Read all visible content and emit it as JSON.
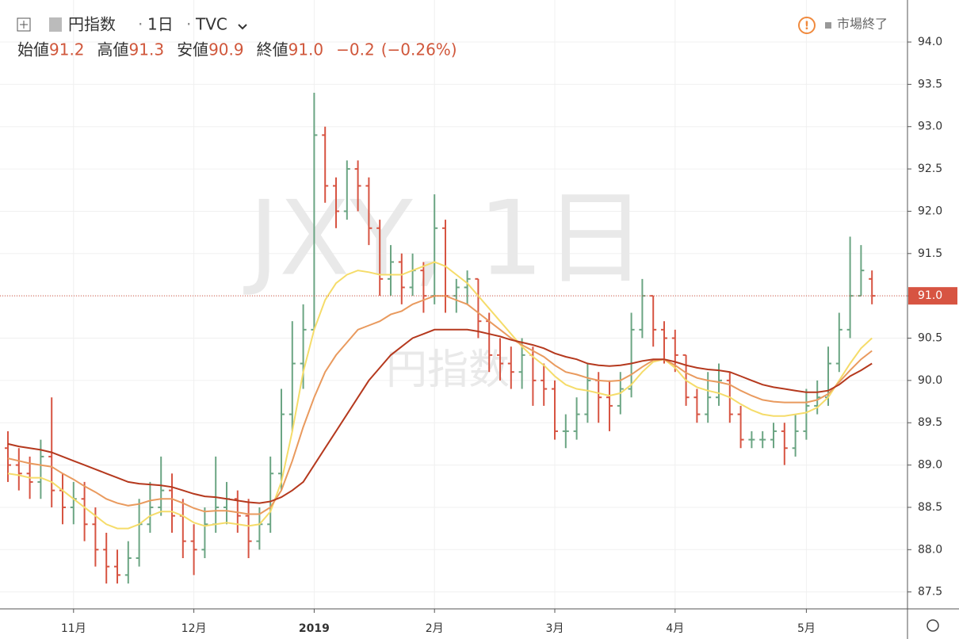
{
  "chart_data": {
    "type": "ohlc",
    "symbol": "円指数",
    "interval": "1日",
    "exchange": "TVC",
    "ohlc_labels": [
      "始値",
      "高値",
      "安値",
      "終値"
    ],
    "ohlc_values": [
      "91.2",
      "91.3",
      "90.9",
      "91.0"
    ],
    "change": "−0.2",
    "change_pct": "(−0.26%)",
    "status": "市場終了",
    "watermark": "JXY, 1日",
    "watermark_sub": "円指数",
    "last_price": {
      "value": 91.0,
      "label": "91.0"
    },
    "categories": [
      null,
      null,
      null,
      null,
      null,
      null,
      "11月",
      null,
      null,
      null,
      null,
      null,
      null,
      null,
      null,
      null,
      null,
      "12月",
      null,
      null,
      null,
      null,
      null,
      null,
      null,
      null,
      null,
      null,
      "2019",
      null,
      null,
      null,
      null,
      null,
      null,
      null,
      null,
      null,
      null,
      "2月",
      null,
      null,
      null,
      null,
      null,
      null,
      null,
      null,
      null,
      null,
      "3月",
      null,
      null,
      null,
      null,
      null,
      null,
      null,
      null,
      null,
      null,
      "4月",
      null,
      null,
      null,
      null,
      null,
      null,
      null,
      null,
      null,
      null,
      null,
      "5月",
      null,
      null,
      null,
      null,
      null,
      null
    ],
    "open": [
      89.2,
      89.0,
      88.9,
      88.8,
      89.1,
      88.7,
      88.5,
      88.6,
      88.3,
      88.0,
      87.8,
      87.7,
      87.9,
      88.3,
      88.5,
      88.7,
      88.4,
      88.1,
      88.0,
      88.3,
      88.5,
      88.6,
      88.4,
      88.1,
      88.3,
      88.9,
      89.6,
      90.2,
      90.6,
      92.9,
      92.3,
      92.0,
      92.5,
      92.3,
      91.8,
      91.2,
      91.4,
      91.1,
      91.3,
      91.0,
      91.8,
      91.0,
      91.1,
      91.2,
      90.7,
      90.3,
      90.2,
      90.1,
      90.3,
      90.0,
      89.9,
      89.4,
      89.4,
      89.6,
      90.0,
      89.8,
      89.7,
      89.9,
      90.6,
      91.0,
      90.6,
      90.5,
      90.3,
      89.8,
      89.6,
      89.8,
      90.0,
      89.6,
      89.3,
      89.3,
      89.3,
      89.4,
      89.2,
      89.4,
      89.7,
      89.8,
      90.2,
      90.6,
      91.0,
      91.2
    ],
    "high": [
      89.4,
      89.2,
      89.1,
      89.3,
      89.8,
      88.9,
      88.8,
      88.8,
      88.5,
      88.2,
      88.0,
      88.1,
      88.6,
      88.8,
      89.1,
      88.9,
      88.6,
      88.3,
      88.5,
      89.1,
      88.8,
      88.7,
      88.6,
      88.5,
      89.1,
      89.9,
      90.7,
      90.9,
      93.4,
      93.0,
      92.4,
      92.6,
      92.6,
      92.4,
      91.9,
      91.6,
      91.5,
      91.5,
      91.4,
      92.2,
      91.9,
      91.2,
      91.3,
      91.2,
      90.8,
      90.5,
      90.4,
      90.5,
      90.4,
      90.2,
      90.0,
      89.6,
      89.8,
      90.2,
      90.1,
      90.0,
      90.1,
      90.8,
      91.2,
      91.0,
      90.7,
      90.6,
      90.3,
      89.9,
      90.1,
      90.2,
      90.1,
      89.7,
      89.4,
      89.4,
      89.5,
      89.5,
      89.6,
      89.9,
      90.0,
      90.4,
      90.8,
      91.7,
      91.6,
      91.3
    ],
    "low": [
      88.8,
      88.7,
      88.6,
      88.6,
      88.5,
      88.3,
      88.3,
      88.1,
      87.8,
      87.6,
      87.6,
      87.6,
      87.8,
      88.2,
      88.4,
      88.2,
      87.9,
      87.7,
      87.9,
      88.2,
      88.3,
      88.2,
      87.9,
      88.0,
      88.2,
      88.7,
      89.4,
      89.9,
      90.6,
      92.1,
      91.8,
      91.9,
      92.0,
      91.6,
      91.0,
      91.0,
      90.9,
      91.0,
      90.8,
      90.9,
      90.8,
      90.8,
      90.9,
      90.5,
      90.1,
      90.0,
      89.9,
      89.9,
      89.7,
      89.7,
      89.3,
      89.2,
      89.3,
      89.5,
      89.5,
      89.4,
      89.6,
      89.8,
      90.5,
      90.4,
      90.2,
      90.1,
      89.7,
      89.5,
      89.5,
      89.7,
      89.5,
      89.2,
      89.2,
      89.2,
      89.2,
      89.0,
      89.1,
      89.3,
      89.6,
      89.7,
      90.1,
      90.5,
      91.0,
      90.9
    ],
    "close": [
      89.0,
      88.9,
      88.8,
      89.1,
      88.7,
      88.5,
      88.6,
      88.3,
      88.0,
      87.8,
      87.7,
      87.9,
      88.3,
      88.5,
      88.7,
      88.4,
      88.1,
      88.0,
      88.3,
      88.5,
      88.6,
      88.4,
      88.1,
      88.3,
      88.9,
      89.6,
      90.2,
      90.6,
      92.9,
      92.3,
      92.0,
      92.5,
      92.3,
      91.8,
      91.2,
      91.4,
      91.1,
      91.3,
      91.0,
      91.8,
      91.0,
      91.1,
      91.2,
      90.7,
      90.3,
      90.2,
      90.1,
      90.3,
      90.0,
      89.9,
      89.4,
      89.4,
      89.6,
      90.0,
      89.8,
      89.7,
      89.9,
      90.6,
      91.0,
      90.6,
      90.5,
      90.3,
      89.8,
      89.6,
      89.8,
      90.0,
      89.6,
      89.3,
      89.3,
      89.3,
      89.4,
      89.2,
      89.4,
      89.7,
      89.8,
      90.2,
      90.6,
      91.0,
      91.3,
      91.0
    ],
    "up_color": "#6ba583",
    "down_color": "#d75442",
    "series": [
      {
        "color": "#f5dc6a",
        "values": [
          88.9,
          88.88,
          88.85,
          88.85,
          88.8,
          88.7,
          88.6,
          88.5,
          88.4,
          88.3,
          88.25,
          88.25,
          88.3,
          88.4,
          88.45,
          88.45,
          88.4,
          88.32,
          88.28,
          88.3,
          88.32,
          88.3,
          88.28,
          88.3,
          88.45,
          88.8,
          89.4,
          90.1,
          90.6,
          90.95,
          91.15,
          91.25,
          91.3,
          91.28,
          91.25,
          91.25,
          91.25,
          91.3,
          91.35,
          91.4,
          91.35,
          91.25,
          91.15,
          91.0,
          90.85,
          90.7,
          90.55,
          90.4,
          90.28,
          90.18,
          90.05,
          89.95,
          89.9,
          89.88,
          89.85,
          89.82,
          89.85,
          89.95,
          90.1,
          90.22,
          90.25,
          90.15,
          90.0,
          89.92,
          89.88,
          89.85,
          89.8,
          89.72,
          89.65,
          89.6,
          89.58,
          89.58,
          89.6,
          89.62,
          89.68,
          89.8,
          90.0,
          90.2,
          90.38,
          90.5
        ]
      },
      {
        "color": "#e99a5e",
        "values": [
          89.08,
          89.05,
          89.02,
          89.0,
          88.98,
          88.9,
          88.83,
          88.75,
          88.68,
          88.6,
          88.55,
          88.52,
          88.54,
          88.58,
          88.6,
          88.6,
          88.55,
          88.49,
          88.45,
          88.46,
          88.46,
          88.44,
          88.42,
          88.42,
          88.5,
          88.7,
          89.05,
          89.45,
          89.8,
          90.1,
          90.3,
          90.45,
          90.6,
          90.65,
          90.7,
          90.78,
          90.82,
          90.9,
          90.95,
          91.0,
          91.0,
          90.95,
          90.9,
          90.8,
          90.7,
          90.6,
          90.5,
          90.42,
          90.35,
          90.28,
          90.18,
          90.1,
          90.07,
          90.03,
          90.0,
          89.99,
          90.0,
          90.07,
          90.16,
          90.24,
          90.25,
          90.18,
          90.09,
          90.03,
          90.0,
          89.98,
          89.95,
          89.88,
          89.82,
          89.77,
          89.75,
          89.74,
          89.74,
          89.74,
          89.77,
          89.84,
          89.98,
          90.12,
          90.25,
          90.35
        ]
      },
      {
        "color": "#b5391e",
        "values": [
          89.25,
          89.22,
          89.2,
          89.18,
          89.15,
          89.1,
          89.05,
          89.0,
          88.95,
          88.9,
          88.85,
          88.8,
          88.78,
          88.77,
          88.76,
          88.74,
          88.7,
          88.66,
          88.63,
          88.62,
          88.6,
          88.58,
          88.56,
          88.55,
          88.57,
          88.62,
          88.7,
          88.8,
          89.0,
          89.2,
          89.4,
          89.6,
          89.8,
          90.0,
          90.15,
          90.3,
          90.4,
          90.5,
          90.55,
          90.6,
          90.6,
          90.6,
          90.6,
          90.58,
          90.55,
          90.52,
          90.48,
          90.45,
          90.42,
          90.38,
          90.32,
          90.28,
          90.25,
          90.2,
          90.18,
          90.17,
          90.18,
          90.2,
          90.23,
          90.25,
          90.25,
          90.22,
          90.18,
          90.15,
          90.13,
          90.12,
          90.1,
          90.05,
          90.0,
          89.95,
          89.92,
          89.9,
          89.88,
          89.86,
          89.86,
          89.88,
          89.95,
          90.05,
          90.12,
          90.2
        ]
      }
    ],
    "ylim": [
      87.3,
      94.45
    ],
    "yticks": [
      87.5,
      {
        "value": 88,
        "label": "88.0"
      },
      88.5,
      {
        "value": 89,
        "label": "89.0"
      },
      89.5,
      {
        "value": 90,
        "label": "90.0"
      },
      90.5,
      {
        "value": 91,
        "label": "91.0"
      },
      91.5,
      {
        "value": 92,
        "label": "92.0"
      },
      92.5,
      {
        "value": 93,
        "label": "93.0"
      },
      93.5,
      {
        "value": 94,
        "label": "94.0"
      }
    ],
    "grid": true
  }
}
